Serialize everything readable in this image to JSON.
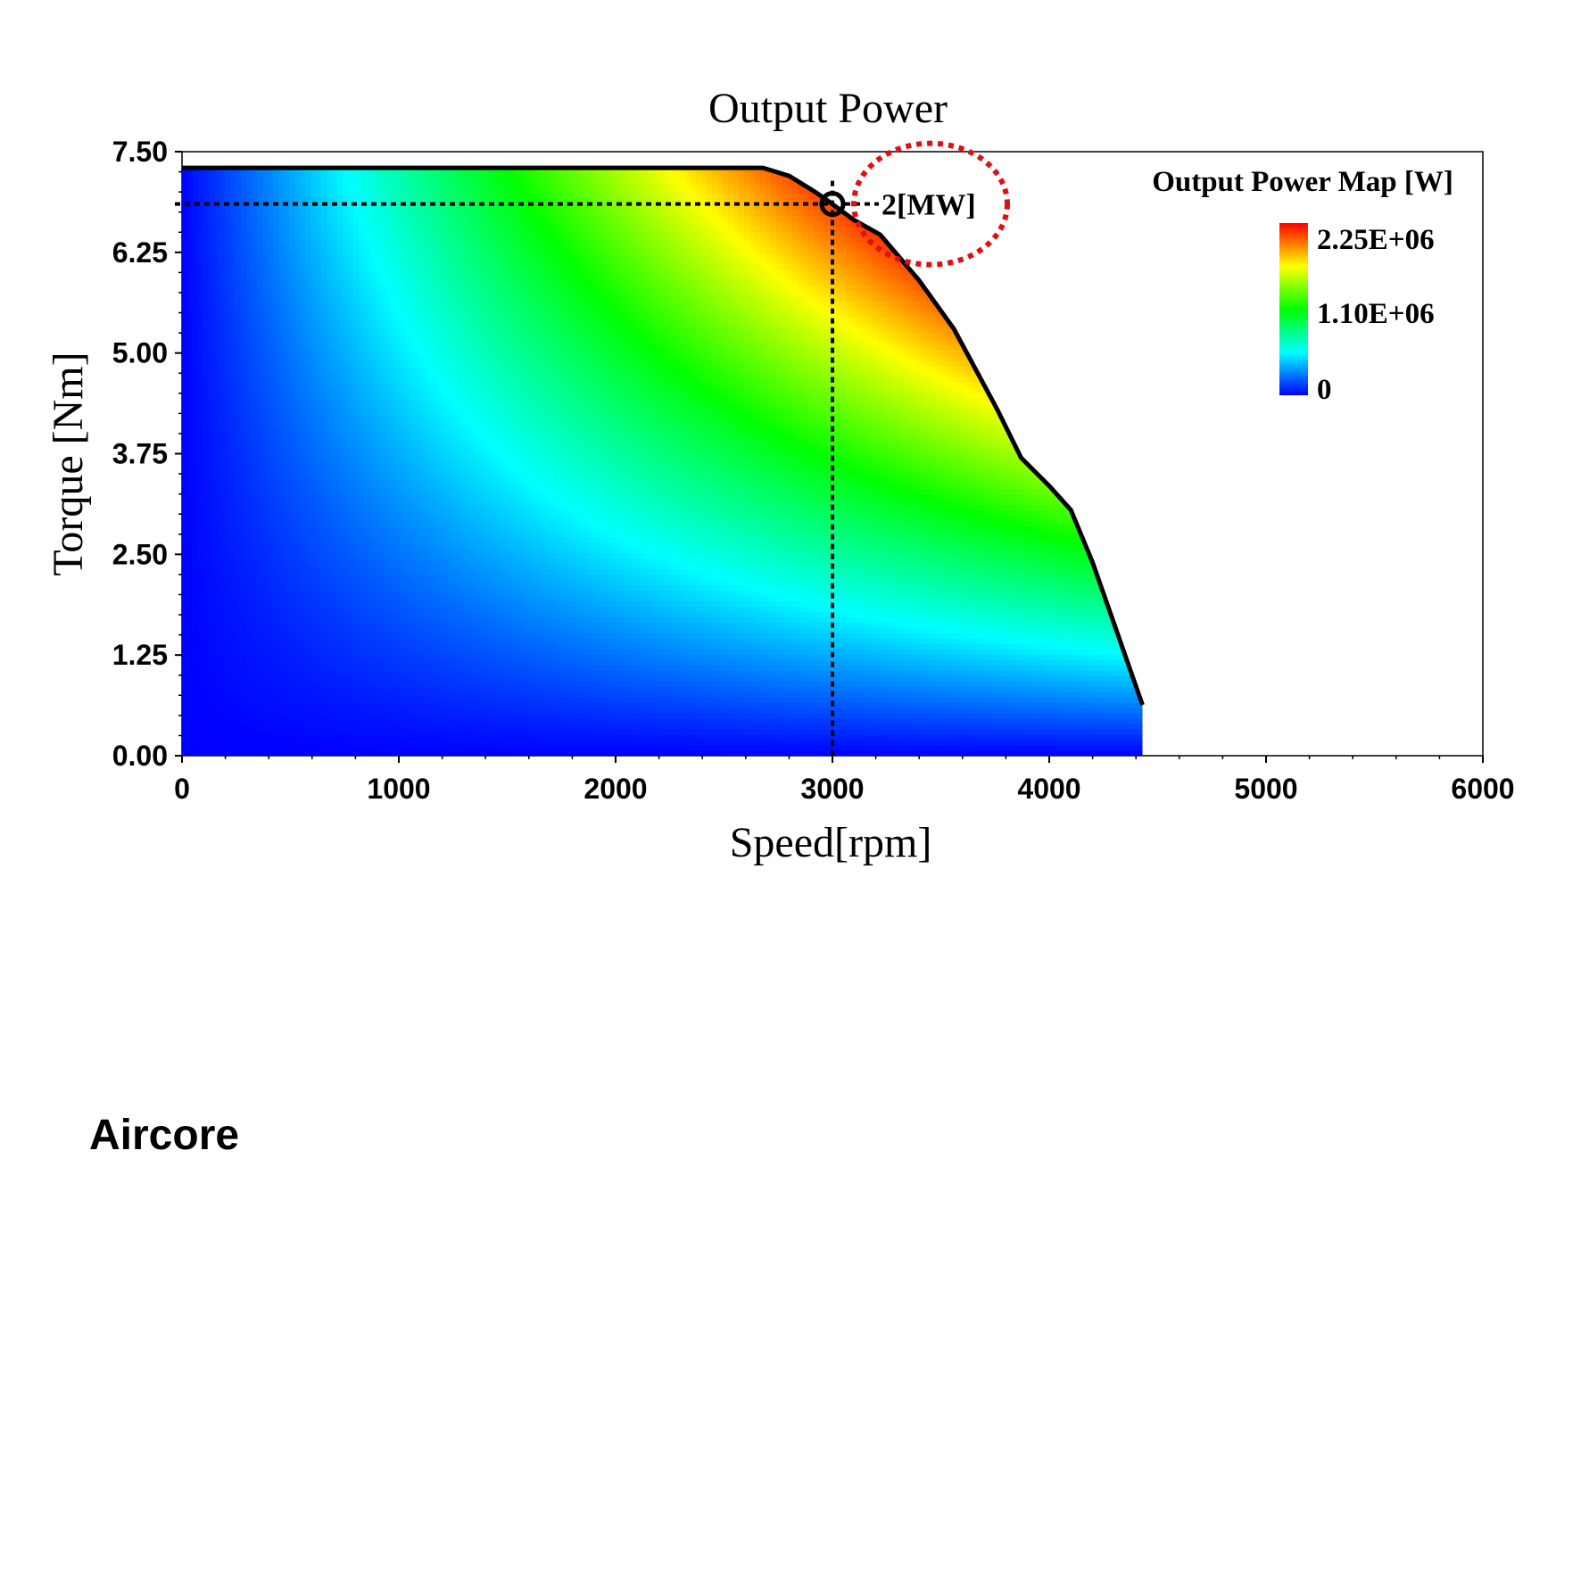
{
  "chart_data": {
    "type": "heatmap",
    "title": "Output Power",
    "xlabel": "Speed[rpm]",
    "ylabel": "Torque [Nm]",
    "xlim": [
      0,
      6000
    ],
    "ylim": [
      0,
      7.5
    ],
    "x_ticks": [
      "0",
      "1000",
      "2000",
      "3000",
      "4000",
      "5000",
      "6000"
    ],
    "y_ticks": [
      "0.00",
      "1.25",
      "2.50",
      "3.75",
      "5.00",
      "6.25",
      "7.50"
    ],
    "colorbar": {
      "title": "Output Power Map [W]",
      "labels": [
        "2.25E+06",
        "1.10E+06",
        "0"
      ],
      "range": [
        0,
        2250000
      ],
      "colors": [
        "#0000ff",
        "#00ffff",
        "#00ff00",
        "#ffff00",
        "#ff0000"
      ]
    },
    "torque_speed_envelope": {
      "speed": [
        0,
        2680,
        2800,
        2920,
        3000,
        3100,
        3220,
        3400,
        3560,
        3760,
        3870,
        4000,
        4100,
        4200,
        4330,
        4430
      ],
      "torque": [
        7.3,
        7.3,
        7.2,
        7.0,
        6.85,
        6.65,
        6.47,
        5.9,
        5.3,
        4.3,
        3.7,
        3.35,
        3.05,
        2.4,
        1.4,
        0.63
      ]
    },
    "operating_point": {
      "speed": 3000,
      "torque": 6.85,
      "label": "2[MW]"
    },
    "grid": false
  },
  "caption": "Aircore"
}
